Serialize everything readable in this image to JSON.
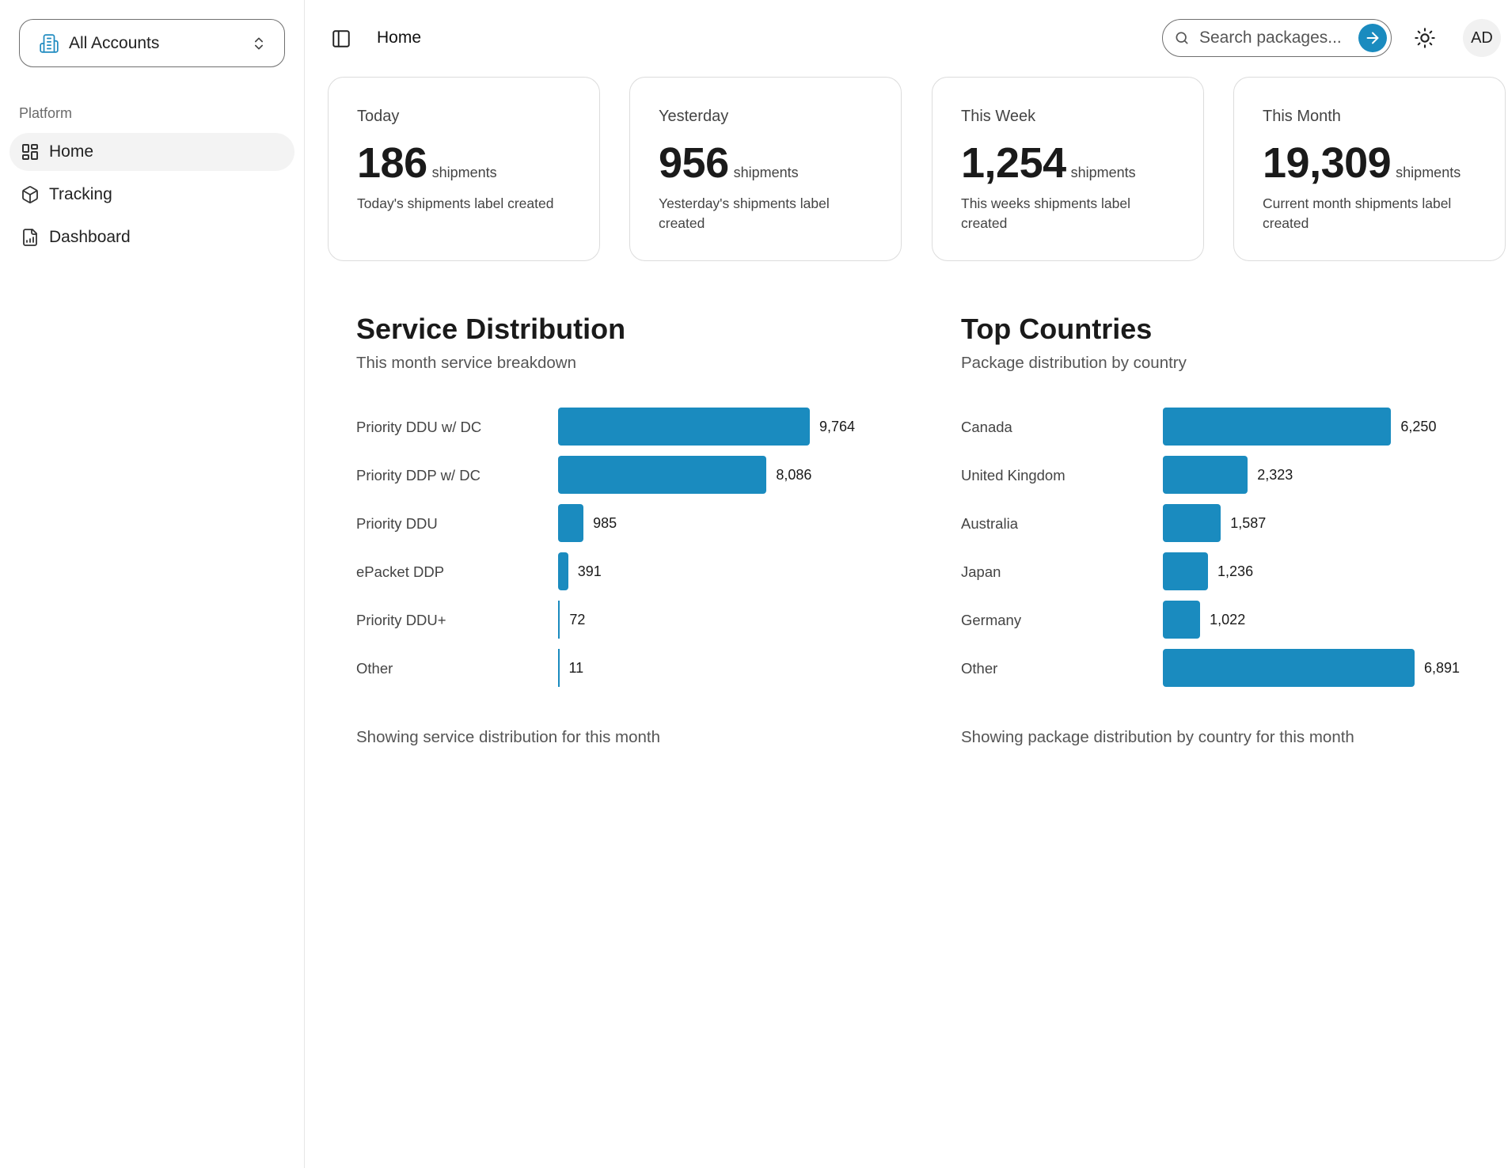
{
  "sidebar": {
    "account_switcher": {
      "label": "All Accounts"
    },
    "section_label": "Platform",
    "items": [
      {
        "label": "Home",
        "icon": "layout-grid-icon",
        "active": true
      },
      {
        "label": "Tracking",
        "icon": "package-icon",
        "active": false
      },
      {
        "label": "Dashboard",
        "icon": "file-chart-icon",
        "active": false
      }
    ]
  },
  "header": {
    "breadcrumb": "Home",
    "search": {
      "placeholder": "Search packages..."
    },
    "avatar_initials": "AD"
  },
  "stats": [
    {
      "period": "Today",
      "value": "186",
      "unit": "shipments",
      "description": "Today's shipments label created"
    },
    {
      "period": "Yesterday",
      "value": "956",
      "unit": "shipments",
      "description": "Yesterday's shipments label created"
    },
    {
      "period": "This Week",
      "value": "1,254",
      "unit": "shipments",
      "description": "This weeks shipments label created"
    },
    {
      "period": "This Month",
      "value": "19,309",
      "unit": "shipments",
      "description": "Current month shipments label created"
    }
  ],
  "colors": {
    "accent": "#1a8bbf"
  },
  "chart_data": [
    {
      "type": "bar",
      "orientation": "horizontal",
      "title": "Service Distribution",
      "subtitle": "This month service breakdown",
      "footer": "Showing service distribution for this month",
      "categories": [
        "Priority DDU w/ DC",
        "Priority DDP w/ DC",
        "Priority DDU",
        "ePacket DDP",
        "Priority DDU+",
        "Other"
      ],
      "values": [
        9764,
        8086,
        985,
        391,
        72,
        11
      ],
      "value_labels": [
        "9,764",
        "8,086",
        "985",
        "391",
        "72",
        "11"
      ],
      "xlim": [
        0,
        9764
      ]
    },
    {
      "type": "bar",
      "orientation": "horizontal",
      "title": "Top Countries",
      "subtitle": "Package distribution by country",
      "footer": "Showing package distribution by country for this month",
      "categories": [
        "Canada",
        "United Kingdom",
        "Australia",
        "Japan",
        "Germany",
        "Other"
      ],
      "values": [
        6250,
        2323,
        1587,
        1236,
        1022,
        6891
      ],
      "value_labels": [
        "6,250",
        "2,323",
        "1,587",
        "1,236",
        "1,022",
        "6,891"
      ],
      "xlim": [
        0,
        6891
      ]
    }
  ]
}
